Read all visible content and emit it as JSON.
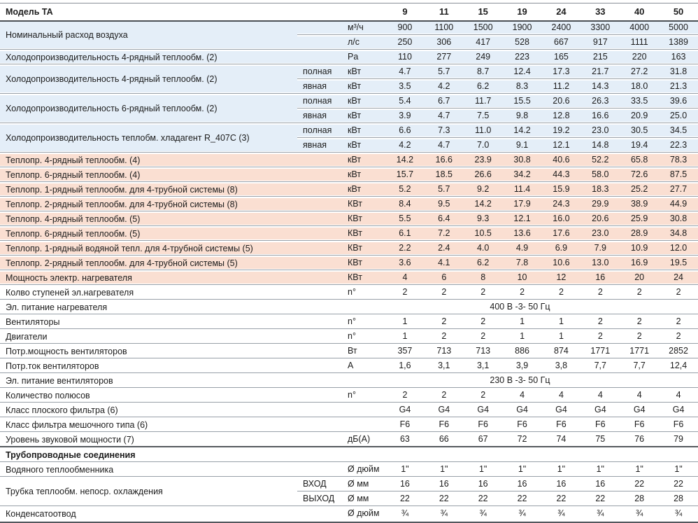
{
  "colors": {
    "row_blue": "#e4eef8",
    "row_salmon": "#fadfd2",
    "separator": "#98a0a8",
    "header_rule": "#4a4f55"
  },
  "table": {
    "title": "Модель TA",
    "models": [
      "9",
      "11",
      "15",
      "19",
      "24",
      "33",
      "40",
      "50"
    ],
    "rows": [
      {
        "label": "Номинальный расход воздуха",
        "band": "blue",
        "subrows": [
          {
            "sub": "",
            "unit": "м³/ч",
            "values": [
              "900",
              "1100",
              "1500",
              "1900",
              "2400",
              "3300",
              "4000",
              "5000"
            ]
          },
          {
            "sub": "",
            "unit": "л/с",
            "values": [
              "250",
              "306",
              "417",
              "528",
              "667",
              "917",
              "1111",
              "1389"
            ]
          }
        ]
      },
      {
        "label": "Холодопроизводительность 4-рядный теплообм. (2)",
        "band": "blue",
        "subrows": [
          {
            "sub": "",
            "unit": "Pa",
            "values": [
              "110",
              "277",
              "249",
              "223",
              "165",
              "215",
              "220",
              "163"
            ]
          }
        ]
      },
      {
        "label": "Холодопроизводительность 4-рядный теплообм. (2)",
        "band": "blue",
        "subrows": [
          {
            "sub": "полная",
            "unit": "кВт",
            "values": [
              "4.7",
              "5.7",
              "8.7",
              "12.4",
              "17.3",
              "21.7",
              "27.2",
              "31.8"
            ]
          },
          {
            "sub": "явная",
            "unit": "кВт",
            "values": [
              "3.5",
              "4.2",
              "6.2",
              "8.3",
              "11.2",
              "14.3",
              "18.0",
              "21.3"
            ]
          }
        ]
      },
      {
        "label": "Холодопроизводительность 6-рядный теплообм. (2)",
        "band": "blue",
        "subrows": [
          {
            "sub": "полная",
            "unit": "кВт",
            "values": [
              "5.4",
              "6.7",
              "11.7",
              "15.5",
              "20.6",
              "26.3",
              "33.5",
              "39.6"
            ]
          },
          {
            "sub": "явная",
            "unit": "кВт",
            "values": [
              "3.9",
              "4.7",
              "7.5",
              "9.8",
              "12.8",
              "16.6",
              "20.9",
              "25.0"
            ]
          }
        ]
      },
      {
        "label": "Холодопроизводительность теплобм. хладагент R_407C (3)",
        "band": "blue",
        "subrows": [
          {
            "sub": "полная",
            "unit": "кВт",
            "values": [
              "6.6",
              "7.3",
              "11.0",
              "14.2",
              "19.2",
              "23.0",
              "30.5",
              "34.5"
            ]
          },
          {
            "sub": "явная",
            "unit": "кВт",
            "values": [
              "4.2",
              "4.7",
              "7.0",
              "9.1",
              "12.1",
              "14.8",
              "19.4",
              "22.3"
            ]
          }
        ]
      },
      {
        "label": "Теплопр. 4-рядный теплообм. (4)",
        "band": "salmon",
        "subrows": [
          {
            "sub": "",
            "unit": "кВт",
            "values": [
              "14.2",
              "16.6",
              "23.9",
              "30.8",
              "40.6",
              "52.2",
              "65.8",
              "78.3"
            ]
          }
        ]
      },
      {
        "label": "Теплопр. 6-рядный теплообм. (4)",
        "band": "salmon",
        "subrows": [
          {
            "sub": "",
            "unit": "кВт",
            "values": [
              "15.7",
              "18.5",
              "26.6",
              "34.2",
              "44.3",
              "58.0",
              "72.6",
              "87.5"
            ]
          }
        ]
      },
      {
        "label": "Теплопр. 1-рядный теплообм. для 4-трубной системы (8)",
        "band": "salmon",
        "subrows": [
          {
            "sub": "",
            "unit": "кВт",
            "values": [
              "5.2",
              "5.7",
              "9.2",
              "11.4",
              "15.9",
              "18.3",
              "25.2",
              "27.7"
            ]
          }
        ]
      },
      {
        "label": "Теплопр. 2-рядный теплообм. для 4-трубной системы (8)",
        "band": "salmon",
        "subrows": [
          {
            "sub": "",
            "unit": "КВт",
            "values": [
              "8.4",
              "9.5",
              "14.2",
              "17.9",
              "24.3",
              "29.9",
              "38.9",
              "44.9"
            ]
          }
        ]
      },
      {
        "label": "Теплопр. 4-рядный теплообм. (5)",
        "band": "salmon",
        "subrows": [
          {
            "sub": "",
            "unit": "КВт",
            "values": [
              "5.5",
              "6.4",
              "9.3",
              "12.1",
              "16.0",
              "20.6",
              "25.9",
              "30.8"
            ]
          }
        ]
      },
      {
        "label": "Теплопр. 6-рядный теплообм. (5)",
        "band": "salmon",
        "subrows": [
          {
            "sub": "",
            "unit": "КВт",
            "values": [
              "6.1",
              "7.2",
              "10.5",
              "13.6",
              "17.6",
              "23.0",
              "28.9",
              "34.8"
            ]
          }
        ]
      },
      {
        "label": "Теплопр. 1-рядный водяной тепл. для 4-трубной системы (5)",
        "band": "salmon",
        "subrows": [
          {
            "sub": "",
            "unit": "КВт",
            "values": [
              "2.2",
              "2.4",
              "4.0",
              "4.9",
              "6.9",
              "7.9",
              "10.9",
              "12.0"
            ]
          }
        ]
      },
      {
        "label": "Теплопр. 2-рядный теплообм. для 4-трубной системы (5)",
        "band": "salmon",
        "subrows": [
          {
            "sub": "",
            "unit": "КВт",
            "values": [
              "3.6",
              "4.1",
              "6.2",
              "7.8",
              "10.6",
              "13.0",
              "16.9",
              "19.5"
            ]
          }
        ]
      },
      {
        "label": "Мощность электр. нагревателя",
        "band": "salmon",
        "subrows": [
          {
            "sub": "",
            "unit": "КВт",
            "values": [
              "4",
              "6",
              "8",
              "10",
              "12",
              "16",
              "20",
              "24"
            ]
          }
        ]
      },
      {
        "label": "Колво ступеней эл.нагревателя",
        "band": "white",
        "subrows": [
          {
            "sub": "",
            "unit": "n°",
            "values": [
              "2",
              "2",
              "2",
              "2",
              "2",
              "2",
              "2",
              "2"
            ]
          }
        ]
      },
      {
        "label": "Эл. питание нагревателя",
        "band": "white",
        "subrows": [
          {
            "span": "400 В -3- 50 Гц"
          }
        ]
      },
      {
        "label": "Вентиляторы",
        "band": "white",
        "subrows": [
          {
            "sub": "",
            "unit": "n°",
            "values": [
              "1",
              "2",
              "2",
              "1",
              "1",
              "2",
              "2",
              "2"
            ]
          }
        ]
      },
      {
        "label": "Двигатели",
        "band": "white",
        "subrows": [
          {
            "sub": "",
            "unit": "n°",
            "values": [
              "1",
              "2",
              "2",
              "1",
              "1",
              "2",
              "2",
              "2"
            ]
          }
        ]
      },
      {
        "label": "Потр.мощность вентиляторов",
        "band": "white",
        "subrows": [
          {
            "sub": "",
            "unit": "Вт",
            "values": [
              "357",
              "713",
              "713",
              "886",
              "874",
              "1771",
              "1771",
              "2852"
            ]
          }
        ]
      },
      {
        "label": "Потр.ток вентиляторов",
        "band": "white",
        "subrows": [
          {
            "sub": "",
            "unit": "А",
            "values": [
              "1,6",
              "3,1",
              "3,1",
              "3,9",
              "3,8",
              "7,7",
              "7,7",
              "12,4"
            ]
          }
        ]
      },
      {
        "label": "Эл. питание вентиляторов",
        "band": "white",
        "subrows": [
          {
            "span": "230 В -3- 50 Гц"
          }
        ]
      },
      {
        "label": "Количество полюсов",
        "band": "white",
        "subrows": [
          {
            "sub": "",
            "unit": "n°",
            "values": [
              "2",
              "2",
              "2",
              "4",
              "4",
              "4",
              "4",
              "4"
            ]
          }
        ]
      },
      {
        "label": "Класс плоского фильтра (6)",
        "band": "white",
        "subrows": [
          {
            "sub": "",
            "unit": "",
            "values": [
              "G4",
              "G4",
              "G4",
              "G4",
              "G4",
              "G4",
              "G4",
              "G4"
            ]
          }
        ]
      },
      {
        "label": "Класс фильтра мешочного типа (6)",
        "band": "white",
        "subrows": [
          {
            "sub": "",
            "unit": "",
            "values": [
              "F6",
              "F6",
              "F6",
              "F6",
              "F6",
              "F6",
              "F6",
              "F6"
            ]
          }
        ]
      },
      {
        "label": "Уровень звуковой мощности (7)",
        "band": "white",
        "subrows": [
          {
            "sub": "",
            "unit": "дБ(А)",
            "values": [
              "63",
              "66",
              "67",
              "72",
              "74",
              "75",
              "76",
              "79"
            ]
          }
        ]
      },
      {
        "label": "Трубопроводные соединения",
        "band": "white",
        "bold": true,
        "sep_before": "strong",
        "subrows": [
          {
            "sub": "",
            "unit": "",
            "values": [
              "",
              "",
              "",
              "",
              "",
              "",
              "",
              ""
            ]
          }
        ]
      },
      {
        "label": "Водяного теплообменника",
        "band": "white",
        "subrows": [
          {
            "sub": "",
            "unit": "Ø дюйм",
            "values": [
              "1\"",
              "1\"",
              "1\"",
              "1\"",
              "1\"",
              "1\"",
              "1\"",
              "1\""
            ]
          }
        ]
      },
      {
        "label": "Трубка теплообм. непоср. охлаждения",
        "band": "white",
        "subrows": [
          {
            "sub": "ВХОД",
            "unit": "Ø мм",
            "values": [
              "16",
              "16",
              "16",
              "16",
              "16",
              "16",
              "22",
              "22"
            ]
          },
          {
            "sub": "ВЫХОД",
            "unit": "Ø мм",
            "values": [
              "22",
              "22",
              "22",
              "22",
              "22",
              "22",
              "28",
              "28"
            ]
          }
        ]
      },
      {
        "label": "Конденсатоотвод",
        "band": "white",
        "subrows": [
          {
            "sub": "",
            "unit": "Ø дюйм",
            "values": [
              "¾",
              "¾",
              "¾",
              "¾",
              "¾",
              "¾",
              "¾",
              "¾"
            ]
          }
        ]
      }
    ]
  }
}
